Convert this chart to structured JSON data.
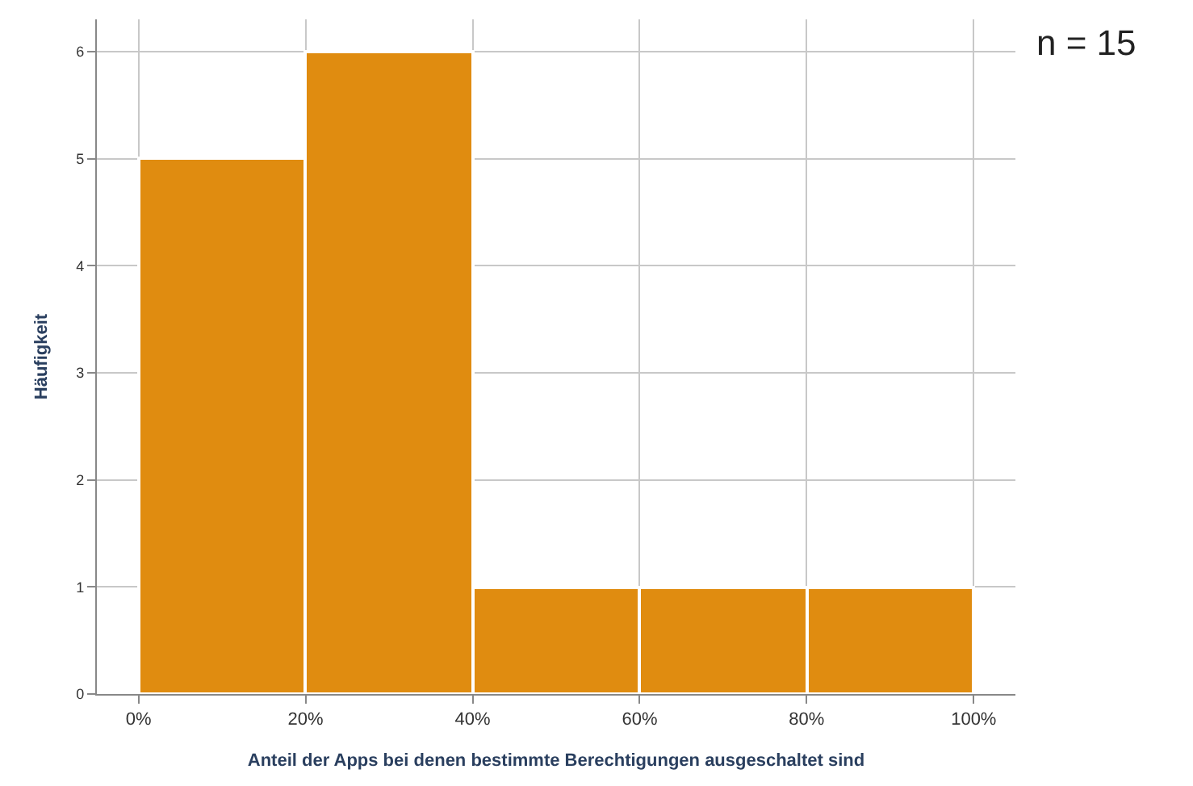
{
  "chart_data": {
    "type": "histogram",
    "xlabel": "Anteil der Apps bei denen bestimmte Berechtigungen ausgeschaltet sind",
    "ylabel": "Häufigkeit",
    "annotations": [
      "n = 15"
    ],
    "bins": [
      0,
      20,
      40,
      60,
      80,
      100
    ],
    "values": [
      5,
      6,
      1,
      1,
      1
    ],
    "color": "#e08c10",
    "xlim": [
      -5,
      105
    ],
    "xticks": [
      {
        "value": 0,
        "label": "0%"
      },
      {
        "value": 20,
        "label": "20%"
      },
      {
        "value": 40,
        "label": "40%"
      },
      {
        "value": 60,
        "label": "60%"
      },
      {
        "value": 80,
        "label": "80%"
      },
      {
        "value": 100,
        "label": "100%"
      }
    ],
    "ylim": [
      0,
      6.3
    ],
    "yticks": [
      0,
      1,
      2,
      3,
      4,
      5,
      6
    ],
    "grid": true
  }
}
